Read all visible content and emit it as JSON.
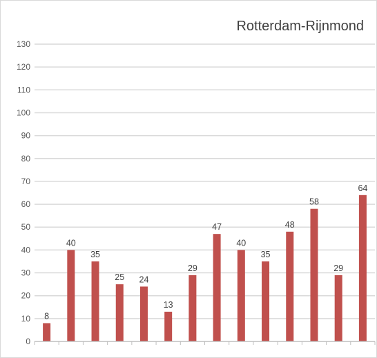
{
  "chart_data": {
    "type": "bar",
    "title": "Rotterdam-Rijnmond",
    "xlabel": "",
    "ylabel": "",
    "categories": [
      "",
      "",
      "",
      "",
      "",
      "",
      "",
      "",
      "",
      "",
      "",
      "",
      "",
      ""
    ],
    "values": [
      8,
      40,
      35,
      25,
      24,
      13,
      29,
      47,
      40,
      35,
      48,
      58,
      29,
      64
    ],
    "data_labels": [
      "8",
      "40",
      "35",
      "25",
      "24",
      "13",
      "29",
      "47",
      "40",
      "35",
      "48",
      "58",
      "29",
      "64"
    ],
    "ylim": [
      0,
      130
    ],
    "yticks": [
      0,
      10,
      20,
      30,
      40,
      50,
      60,
      70,
      80,
      90,
      100,
      110,
      120,
      130
    ],
    "ytick_labels": [
      "0",
      "10",
      "20",
      "30",
      "40",
      "50",
      "60",
      "70",
      "80",
      "90",
      "100",
      "110",
      "120",
      "130"
    ],
    "grid": true,
    "legend": "none",
    "colors": {
      "bar": "#c0504d",
      "grid": "#d9d9d9",
      "axis": "#bfbfbf"
    }
  }
}
